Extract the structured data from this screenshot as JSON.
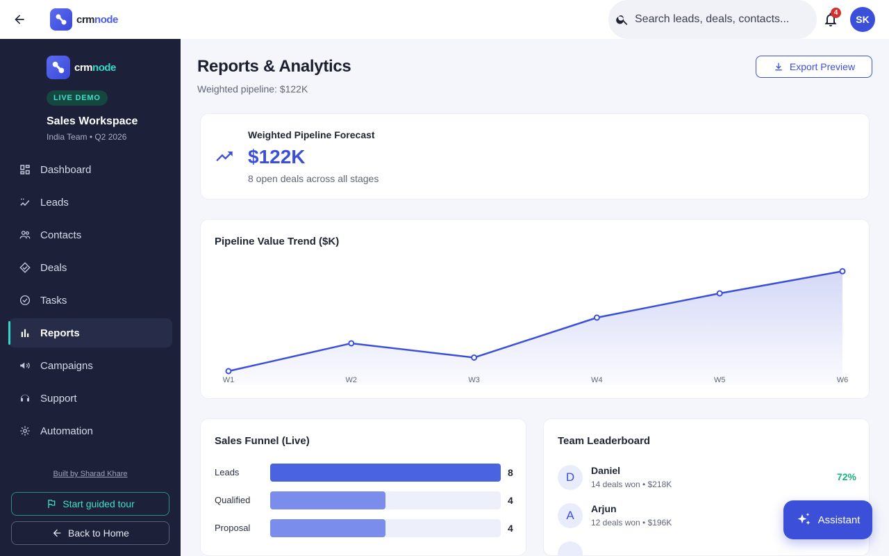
{
  "header": {
    "logo": {
      "part1": "crm",
      "part2": "node"
    },
    "search_placeholder": "Search leads, deals, contacts...",
    "notification_count": "4",
    "user_initials": "SK"
  },
  "sidebar": {
    "logo": {
      "part1": "crm",
      "part2": "node"
    },
    "badge": "LIVE DEMO",
    "workspace_title": "Sales Workspace",
    "workspace_sub": "India Team • Q2 2026",
    "items": [
      {
        "label": "Dashboard",
        "icon": "dashboard-icon"
      },
      {
        "label": "Leads",
        "icon": "leads-icon"
      },
      {
        "label": "Contacts",
        "icon": "contacts-icon"
      },
      {
        "label": "Deals",
        "icon": "deals-icon"
      },
      {
        "label": "Tasks",
        "icon": "tasks-icon"
      },
      {
        "label": "Reports",
        "icon": "reports-icon",
        "active": true
      },
      {
        "label": "Campaigns",
        "icon": "campaigns-icon"
      },
      {
        "label": "Support",
        "icon": "support-icon"
      },
      {
        "label": "Automation",
        "icon": "automation-icon"
      }
    ],
    "built_by": "Built by Sharad Khare",
    "tour_label": "Start guided tour",
    "home_label": "Back to Home"
  },
  "page": {
    "title": "Reports & Analytics",
    "subtitle": "Weighted pipeline: $122K",
    "export_label": "Export Preview"
  },
  "forecast": {
    "label": "Weighted Pipeline Forecast",
    "value": "$122K",
    "sub": "8 open deals across all stages"
  },
  "chart_data": {
    "type": "area",
    "title": "Pipeline Value Trend ($K)",
    "categories": [
      "W1",
      "W2",
      "W3",
      "W4",
      "W5",
      "W6"
    ],
    "values": [
      0,
      39,
      19,
      75,
      109,
      140
    ],
    "ylim": [
      0,
      150
    ],
    "grid": false,
    "color": "#3b4fd8"
  },
  "funnel": {
    "title": "Sales Funnel (Live)",
    "max": 8,
    "rows": [
      {
        "label": "Leads",
        "value": 8,
        "count": "8",
        "color": "#4a63e0"
      },
      {
        "label": "Qualified",
        "value": 4,
        "count": "4",
        "color": "#7a8cec"
      },
      {
        "label": "Proposal",
        "value": 4,
        "count": "4",
        "color": "#7a8cec"
      }
    ]
  },
  "leaderboard": {
    "title": "Team Leaderboard",
    "rows": [
      {
        "initial": "D",
        "name": "Daniel",
        "sub": "14 deals won • $218K",
        "pct": "72%"
      },
      {
        "initial": "A",
        "name": "Arjun",
        "sub": "12 deals won • $196K",
        "pct": ""
      },
      {
        "initial": "",
        "name": "",
        "sub": "",
        "pct": ""
      }
    ]
  },
  "assistant_label": "Assistant"
}
